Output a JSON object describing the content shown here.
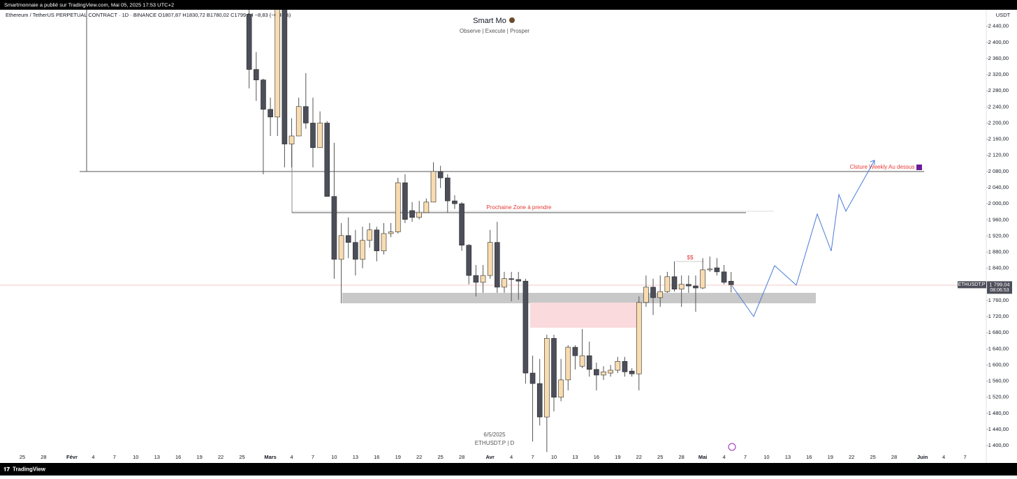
{
  "publisher": "Smartmonnaie a publié sur TradingView.com, Mai 05, 2025 17:53 UTC+2",
  "brand": "TradingView",
  "chart_data": {
    "type": "candlestick",
    "legend_text": "Ethereum / TetherUS PERPETUAL CONTRACT · 1D · BINANCE  O1807,87  H1830,72  B1780,02  C1799,04  −8,83 (−0,49%)",
    "watermark_title": "Smart Mo",
    "watermark_subtitle": "Observe |  Execute |  Prosper",
    "footer_date": "6/5/2025",
    "footer_symbol": "ETHUSDT.P | D",
    "currency": "USDT",
    "symbol_badge": "ETHUSDT.P",
    "last_price": {
      "value": 1799.04,
      "label": "1 799,04"
    },
    "countdown": "08:06:53",
    "annotations": [
      "Prochaine Zone à prendre",
      "Clsture Weekly Au dessus",
      "$$"
    ],
    "x": [
      "2025-02-26",
      "2025-02-27",
      "2025-02-28",
      "2025-03-01",
      "2025-03-02",
      "2025-03-03",
      "2025-03-04",
      "2025-03-05",
      "2025-03-06",
      "2025-03-07",
      "2025-03-08",
      "2025-03-09",
      "2025-03-10",
      "2025-03-11",
      "2025-03-12",
      "2025-03-13",
      "2025-03-14",
      "2025-03-15",
      "2025-03-16",
      "2025-03-17",
      "2025-03-18",
      "2025-03-19",
      "2025-03-20",
      "2025-03-21",
      "2025-03-22",
      "2025-03-23",
      "2025-03-24",
      "2025-03-25",
      "2025-03-26",
      "2025-03-27",
      "2025-03-28",
      "2025-03-29",
      "2025-03-30",
      "2025-03-31",
      "2025-04-01",
      "2025-04-02",
      "2025-04-03",
      "2025-04-04",
      "2025-04-05",
      "2025-04-06",
      "2025-04-07",
      "2025-04-08",
      "2025-04-09",
      "2025-04-10",
      "2025-04-11",
      "2025-04-12",
      "2025-04-13",
      "2025-04-14",
      "2025-04-15",
      "2025-04-16",
      "2025-04-17",
      "2025-04-18",
      "2025-04-19",
      "2025-04-20",
      "2025-04-21",
      "2025-04-22",
      "2025-04-23",
      "2025-04-24",
      "2025-04-25",
      "2025-04-26",
      "2025-04-27",
      "2025-04-28",
      "2025-04-29",
      "2025-04-30",
      "2025-05-01",
      "2025-05-02",
      "2025-05-03",
      "2025-05-04",
      "2025-05-05"
    ],
    "open": [
      2470,
      2333,
      2307,
      2234,
      2215,
      2518,
      2148,
      2168,
      2241,
      2200,
      2139,
      2200,
      2018,
      1862,
      1921,
      1904,
      1862,
      1909,
      1935,
      1883,
      1926,
      1930,
      2052,
      1983,
      1966,
      1978,
      2004,
      2080,
      2064,
      2007,
      2000,
      1897,
      1822,
      1805,
      1822,
      1904,
      1793,
      1814,
      1812,
      1808,
      1580,
      1554,
      1471,
      1666,
      1520,
      1563,
      1644,
      1597,
      1623,
      1589,
      1575,
      1580,
      1587,
      1609,
      1585,
      1578,
      1755,
      1793,
      1767,
      1782,
      1819,
      1788,
      1800,
      1796,
      1791,
      1836,
      1841,
      1831,
      1807.87
    ],
    "high": [
      2510,
      2376,
      2310,
      2263,
      2550,
      2550,
      2212,
      2263,
      2324,
      2263,
      2229,
      2205,
      2151,
      1952,
      1966,
      1935,
      1943,
      1952,
      1943,
      1952,
      1952,
      2064,
      2073,
      2004,
      2007,
      2013,
      2103,
      2094,
      2073,
      2021,
      2004,
      1900,
      1848,
      1848,
      1935,
      1955,
      1831,
      1831,
      1831,
      1814,
      1623,
      1615,
      1675,
      1675,
      1615,
      1649,
      1649,
      1689,
      1658,
      1606,
      1597,
      1600,
      1620,
      1620,
      1592,
      1770,
      1822,
      1814,
      1822,
      1831,
      1857,
      1822,
      1822,
      1822,
      1865,
      1869,
      1865,
      1848,
      1830.72
    ],
    "low": [
      2286,
      2255,
      2073,
      2168,
      2168,
      2090,
      2090,
      2168,
      2186,
      2090,
      2139,
      2018,
      1814,
      1753,
      1865,
      1822,
      1840,
      1891,
      1857,
      1874,
      1917,
      1926,
      1952,
      1955,
      1961,
      1978,
      2004,
      2039,
      1978,
      1987,
      1883,
      1800,
      1770,
      1779,
      1814,
      1779,
      1779,
      1758,
      1762,
      1554,
      1410,
      1450,
      1384,
      1485,
      1510,
      1537,
      1589,
      1592,
      1571,
      1537,
      1563,
      1571,
      1580,
      1571,
      1571,
      1537,
      1744,
      1724,
      1744,
      1779,
      1782,
      1744,
      1779,
      1732,
      1788,
      1831,
      1822,
      1800,
      1780.02
    ],
    "close": [
      2333,
      2307,
      2234,
      2215,
      2518,
      2148,
      2168,
      2241,
      2200,
      2139,
      2200,
      2018,
      1862,
      1921,
      1904,
      1862,
      1909,
      1935,
      1883,
      1926,
      1930,
      2052,
      1961,
      1966,
      1978,
      2004,
      2080,
      2064,
      2007,
      2000,
      1897,
      1822,
      1805,
      1822,
      1904,
      1793,
      1814,
      1812,
      1808,
      1580,
      1554,
      1471,
      1666,
      1520,
      1563,
      1644,
      1623,
      1623,
      1589,
      1575,
      1583,
      1587,
      1609,
      1583,
      1578,
      1755,
      1793,
      1767,
      1782,
      1819,
      1788,
      1800,
      1796,
      1791,
      1836,
      1838,
      1831,
      1805,
      1799.04
    ],
    "up_color": "#f8dcb0",
    "down_color": "#4c4e59",
    "xlim": [
      "2025-01-22",
      "2025-06-10"
    ],
    "xticks": [
      {
        "value": "2025-01-25",
        "label": "25"
      },
      {
        "value": "2025-01-28",
        "label": "28"
      },
      {
        "value": "2025-02-01",
        "label": "Févr"
      },
      {
        "value": "2025-02-04",
        "label": "4"
      },
      {
        "value": "2025-02-07",
        "label": "7"
      },
      {
        "value": "2025-02-10",
        "label": "10"
      },
      {
        "value": "2025-02-13",
        "label": "13"
      },
      {
        "value": "2025-02-16",
        "label": "16"
      },
      {
        "value": "2025-02-19",
        "label": "19"
      },
      {
        "value": "2025-02-22",
        "label": "22"
      },
      {
        "value": "2025-02-25",
        "label": "25"
      },
      {
        "value": "2025-03-01",
        "label": "Mars"
      },
      {
        "value": "2025-03-04",
        "label": "4"
      },
      {
        "value": "2025-03-07",
        "label": "7"
      },
      {
        "value": "2025-03-10",
        "label": "10"
      },
      {
        "value": "2025-03-13",
        "label": "13"
      },
      {
        "value": "2025-03-16",
        "label": "16"
      },
      {
        "value": "2025-03-19",
        "label": "19"
      },
      {
        "value": "2025-03-22",
        "label": "22"
      },
      {
        "value": "2025-03-25",
        "label": "25"
      },
      {
        "value": "2025-03-28",
        "label": "28"
      },
      {
        "value": "2025-04-01",
        "label": "Avr"
      },
      {
        "value": "2025-04-04",
        "label": "4"
      },
      {
        "value": "2025-04-07",
        "label": "7"
      },
      {
        "value": "2025-04-10",
        "label": "10"
      },
      {
        "value": "2025-04-13",
        "label": "13"
      },
      {
        "value": "2025-04-16",
        "label": "16"
      },
      {
        "value": "2025-04-19",
        "label": "19"
      },
      {
        "value": "2025-04-22",
        "label": "22"
      },
      {
        "value": "2025-04-25",
        "label": "25"
      },
      {
        "value": "2025-04-28",
        "label": "28"
      },
      {
        "value": "2025-05-01",
        "label": "Mai"
      },
      {
        "value": "2025-05-04",
        "label": "4"
      },
      {
        "value": "2025-05-07",
        "label": "7"
      },
      {
        "value": "2025-05-10",
        "label": "10"
      },
      {
        "value": "2025-05-13",
        "label": "13"
      },
      {
        "value": "2025-05-16",
        "label": "16"
      },
      {
        "value": "2025-05-19",
        "label": "19"
      },
      {
        "value": "2025-05-22",
        "label": "22"
      },
      {
        "value": "2025-05-25",
        "label": "25"
      },
      {
        "value": "2025-05-28",
        "label": "28"
      },
      {
        "value": "2025-06-01",
        "label": "Juin"
      },
      {
        "value": "2025-06-04",
        "label": "4"
      },
      {
        "value": "2025-06-07",
        "label": "7"
      }
    ],
    "ylim": [
      1357,
      2481
    ],
    "yticks": [
      {
        "value": 2440,
        "label": "2 440,00"
      },
      {
        "value": 2400,
        "label": "2 400,00"
      },
      {
        "value": 2360,
        "label": "2 360,00"
      },
      {
        "value": 2320,
        "label": "2 320,00"
      },
      {
        "value": 2280,
        "label": "2 280,00"
      },
      {
        "value": 2240,
        "label": "2 240,00"
      },
      {
        "value": 2200,
        "label": "2 200,00"
      },
      {
        "value": 2160,
        "label": "2 160,00"
      },
      {
        "value": 2120,
        "label": "2 120,00"
      },
      {
        "value": 2080,
        "label": "2 080,00"
      },
      {
        "value": 2040,
        "label": "2 040,00"
      },
      {
        "value": 2000,
        "label": "2 000,00"
      },
      {
        "value": 1960,
        "label": "1 960,00"
      },
      {
        "value": 1920,
        "label": "1 920,00"
      },
      {
        "value": 1880,
        "label": "1 880,00"
      },
      {
        "value": 1840,
        "label": "1 840,00"
      },
      {
        "value": 1800,
        "label": "1 800,00"
      },
      {
        "value": 1760,
        "label": "1 760,00"
      },
      {
        "value": 1720,
        "label": "1 720,00"
      },
      {
        "value": 1680,
        "label": "1 680,00"
      },
      {
        "value": 1640,
        "label": "1 640,00"
      },
      {
        "value": 1600,
        "label": "1 600,00"
      },
      {
        "value": 1560,
        "label": "1 560,00"
      },
      {
        "value": 1520,
        "label": "1 520,00"
      },
      {
        "value": 1480,
        "label": "1 480,00"
      },
      {
        "value": 1440,
        "label": "1 440,00"
      },
      {
        "value": 1400,
        "label": "1 400,00"
      }
    ],
    "grid": false
  }
}
